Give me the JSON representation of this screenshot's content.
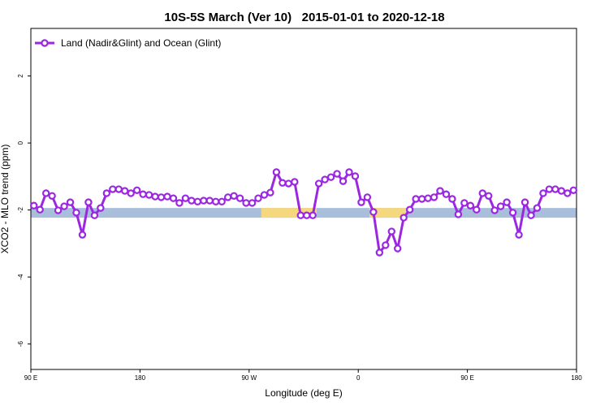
{
  "chart_data": {
    "type": "line",
    "title": "10S-5S March (Ver 10)   2015-01-01 to 2020-12-18",
    "x_label": "Longitude (deg E)",
    "y_label": "XCO2 - MLO trend (ppm)",
    "xlim": [
      90,
      540
    ],
    "ylim": [
      -6.76,
      3.42
    ],
    "xticks": [
      {
        "value": 90,
        "label": "90 E"
      },
      180,
      {
        "value": 270,
        "label": "90 W"
      },
      {
        "value": 360,
        "label": "0"
      },
      {
        "value": 450,
        "label": "90 E"
      },
      {
        "value": 540,
        "label": "180"
      }
    ],
    "yticks": [
      -6,
      -4,
      -2,
      0,
      2
    ],
    "legend_position": "top-left",
    "band": {
      "ylim": [
        -2.23,
        -1.94
      ],
      "color": "#a8bedb",
      "segments": [
        {
          "x": [
            280,
            325.7
          ],
          "color": "#f5d77e"
        },
        {
          "x": [
            369.2,
            399.4
          ],
          "color": "#f5d77e"
        }
      ]
    },
    "series": [
      {
        "name": "Land (Nadir&Glint) and Ocean (Glint)",
        "color": "#9b27e0",
        "x": [
          92.5,
          97.5,
          102.5,
          107.5,
          112.5,
          117.5,
          122.5,
          127.5,
          132.5,
          137.5,
          142.5,
          147.5,
          152.5,
          157.5,
          162.5,
          167.5,
          172.5,
          177.5,
          182.5,
          187.5,
          192.5,
          197.5,
          202.5,
          207.5,
          212.5,
          217.5,
          222.5,
          227.5,
          232.5,
          237.5,
          242.5,
          247.5,
          252.5,
          257.5,
          262.5,
          267.5,
          272.5,
          277.5,
          282.5,
          287.5,
          292.5,
          297.5,
          302.5,
          307.5,
          312.5,
          317.5,
          322.5,
          327.5,
          332.5,
          337.5,
          342.5,
          347.5,
          352.5,
          357.5,
          362.5,
          367.5,
          372.5,
          377.5,
          382.5,
          387.5,
          392.5,
          397.5,
          402.5,
          407.5,
          412.5,
          417.5,
          422.5,
          427.5,
          432.5,
          437.5,
          442.5,
          447.5,
          452.5,
          457.5,
          462.5,
          467.5,
          472.5,
          477.5,
          482.5,
          487.5,
          492.5,
          497.5,
          502.5,
          507.5,
          512.5,
          517.5,
          522.5,
          527.5,
          532.5,
          537.5
        ],
        "values": [
          -1.87,
          -1.99,
          -1.5,
          -1.58,
          -2.01,
          -1.89,
          -1.77,
          -2.08,
          -2.74,
          -1.77,
          -2.16,
          -1.94,
          -1.5,
          -1.38,
          -1.38,
          -1.43,
          -1.5,
          -1.41,
          -1.53,
          -1.55,
          -1.6,
          -1.62,
          -1.6,
          -1.65,
          -1.79,
          -1.65,
          -1.72,
          -1.75,
          -1.72,
          -1.72,
          -1.75,
          -1.75,
          -1.62,
          -1.58,
          -1.65,
          -1.79,
          -1.79,
          -1.65,
          -1.55,
          -1.48,
          -0.87,
          -1.19,
          -1.21,
          -1.16,
          -2.16,
          -2.16,
          -2.16,
          -1.21,
          -1.09,
          -1.02,
          -0.92,
          -1.14,
          -0.87,
          -0.99,
          -1.77,
          -1.62,
          -2.06,
          -3.27,
          -3.05,
          -2.64,
          -3.15,
          -2.23,
          -1.99,
          -1.67,
          -1.67,
          -1.65,
          -1.62,
          -1.43,
          -1.53,
          -1.67,
          -2.13,
          -1.79,
          -1.87,
          -1.99,
          -1.5,
          -1.58,
          -2.01,
          -1.89,
          -1.77,
          -2.08,
          -2.74,
          -1.77,
          -2.16,
          -1.94,
          -1.5,
          -1.38,
          -1.38,
          -1.43,
          -1.5,
          -1.41
        ]
      }
    ]
  }
}
